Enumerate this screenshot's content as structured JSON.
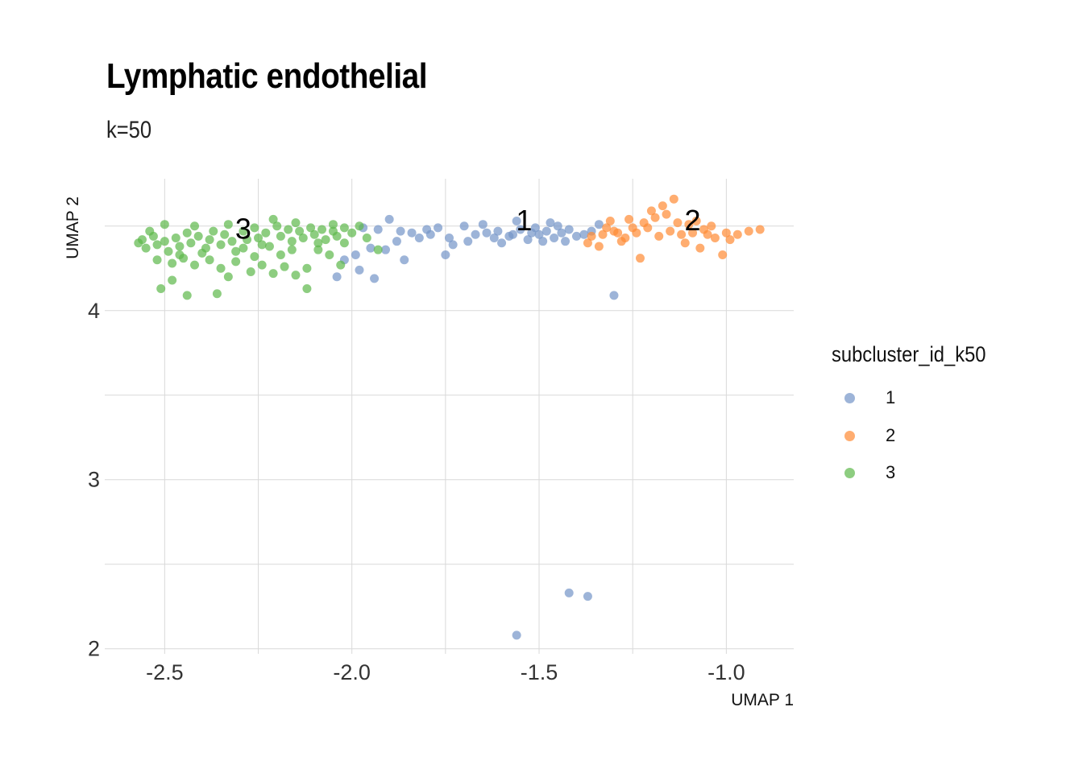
{
  "chart_data": {
    "type": "scatter",
    "title": "Lymphatic endothelial",
    "subtitle": "k=50",
    "xlabel": "UMAP 1",
    "ylabel": "UMAP 2",
    "xlim": [
      -2.66,
      -0.82
    ],
    "ylim": [
      1.97,
      4.78
    ],
    "xticks": [
      -2.5,
      -2.0,
      -1.5,
      -1.0
    ],
    "xtick_labels": [
      "-2.5",
      "-2.0",
      "-1.5",
      "-1.0"
    ],
    "yticks": [
      2,
      3,
      4
    ],
    "ytick_labels": [
      "2",
      "3",
      "4"
    ],
    "grid": true,
    "legend": {
      "title": "subcluster_id_k50",
      "placement": "right",
      "entries": [
        "1",
        "2",
        "3"
      ]
    },
    "series": [
      {
        "name": "1",
        "color": "#7494C8",
        "points": [
          [
            -1.97,
            4.49
          ],
          [
            -1.93,
            4.48
          ],
          [
            -1.9,
            4.54
          ],
          [
            -1.87,
            4.47
          ],
          [
            -1.84,
            4.46
          ],
          [
            -1.8,
            4.48
          ],
          [
            -1.77,
            4.49
          ],
          [
            -1.74,
            4.43
          ],
          [
            -1.7,
            4.5
          ],
          [
            -1.67,
            4.45
          ],
          [
            -1.64,
            4.46
          ],
          [
            -1.61,
            4.47
          ],
          [
            -1.58,
            4.44
          ],
          [
            -1.55,
            4.48
          ],
          [
            -1.52,
            4.46
          ],
          [
            -1.5,
            4.45
          ],
          [
            -1.48,
            4.47
          ],
          [
            -1.46,
            4.43
          ],
          [
            -1.44,
            4.46
          ],
          [
            -1.42,
            4.48
          ],
          [
            -1.4,
            4.44
          ],
          [
            -1.38,
            4.45
          ],
          [
            -1.36,
            4.47
          ],
          [
            -1.34,
            4.51
          ],
          [
            -1.56,
            4.53
          ],
          [
            -1.6,
            4.4
          ],
          [
            -1.53,
            4.42
          ],
          [
            -1.47,
            4.52
          ],
          [
            -1.43,
            4.41
          ],
          [
            -1.65,
            4.51
          ],
          [
            -1.73,
            4.39
          ],
          [
            -1.82,
            4.43
          ],
          [
            -1.88,
            4.41
          ],
          [
            -1.95,
            4.37
          ],
          [
            -1.99,
            4.33
          ],
          [
            -2.02,
            4.3
          ],
          [
            -1.91,
            4.36
          ],
          [
            -1.86,
            4.3
          ],
          [
            -1.75,
            4.33
          ],
          [
            -1.98,
            4.24
          ],
          [
            -2.04,
            4.2
          ],
          [
            -1.94,
            4.19
          ],
          [
            -1.3,
            4.09
          ],
          [
            -1.57,
            4.45
          ],
          [
            -1.51,
            4.49
          ],
          [
            -1.45,
            4.5
          ],
          [
            -1.49,
            4.41
          ],
          [
            -1.62,
            4.43
          ],
          [
            -1.69,
            4.41
          ],
          [
            -1.79,
            4.45
          ],
          [
            -1.42,
            2.33
          ],
          [
            -1.37,
            2.31
          ],
          [
            -1.56,
            2.08
          ]
        ]
      },
      {
        "name": "2",
        "color": "#FF8A33",
        "points": [
          [
            -1.36,
            4.44
          ],
          [
            -1.33,
            4.45
          ],
          [
            -1.3,
            4.47
          ],
          [
            -1.27,
            4.43
          ],
          [
            -1.24,
            4.46
          ],
          [
            -1.21,
            4.49
          ],
          [
            -1.18,
            4.44
          ],
          [
            -1.15,
            4.47
          ],
          [
            -1.12,
            4.45
          ],
          [
            -1.09,
            4.46
          ],
          [
            -1.06,
            4.48
          ],
          [
            -1.03,
            4.43
          ],
          [
            -1.0,
            4.46
          ],
          [
            -0.97,
            4.45
          ],
          [
            -0.94,
            4.47
          ],
          [
            -0.91,
            4.48
          ],
          [
            -1.19,
            4.55
          ],
          [
            -1.16,
            4.57
          ],
          [
            -1.13,
            4.52
          ],
          [
            -1.22,
            4.52
          ],
          [
            -1.26,
            4.54
          ],
          [
            -1.31,
            4.53
          ],
          [
            -1.17,
            4.62
          ],
          [
            -1.2,
            4.59
          ],
          [
            -1.14,
            4.66
          ],
          [
            -1.08,
            4.53
          ],
          [
            -1.04,
            4.5
          ],
          [
            -1.34,
            4.38
          ],
          [
            -1.28,
            4.41
          ],
          [
            -1.11,
            4.4
          ],
          [
            -1.23,
            4.31
          ],
          [
            -1.01,
            4.33
          ],
          [
            -1.07,
            4.37
          ],
          [
            -1.37,
            4.4
          ],
          [
            -1.25,
            4.49
          ],
          [
            -1.1,
            4.51
          ],
          [
            -0.99,
            4.42
          ],
          [
            -1.05,
            4.45
          ],
          [
            -1.29,
            4.46
          ],
          [
            -1.32,
            4.49
          ]
        ]
      },
      {
        "name": "3",
        "color": "#5CB84A",
        "points": [
          [
            -2.56,
            4.42
          ],
          [
            -2.55,
            4.37
          ],
          [
            -2.53,
            4.44
          ],
          [
            -2.52,
            4.39
          ],
          [
            -2.5,
            4.41
          ],
          [
            -2.49,
            4.35
          ],
          [
            -2.47,
            4.43
          ],
          [
            -2.46,
            4.38
          ],
          [
            -2.44,
            4.46
          ],
          [
            -2.43,
            4.4
          ],
          [
            -2.41,
            4.44
          ],
          [
            -2.4,
            4.34
          ],
          [
            -2.38,
            4.42
          ],
          [
            -2.37,
            4.47
          ],
          [
            -2.35,
            4.39
          ],
          [
            -2.34,
            4.45
          ],
          [
            -2.32,
            4.41
          ],
          [
            -2.31,
            4.35
          ],
          [
            -2.29,
            4.47
          ],
          [
            -2.28,
            4.42
          ],
          [
            -2.26,
            4.49
          ],
          [
            -2.25,
            4.43
          ],
          [
            -2.23,
            4.46
          ],
          [
            -2.22,
            4.38
          ],
          [
            -2.2,
            4.5
          ],
          [
            -2.19,
            4.44
          ],
          [
            -2.17,
            4.48
          ],
          [
            -2.16,
            4.41
          ],
          [
            -2.14,
            4.47
          ],
          [
            -2.13,
            4.43
          ],
          [
            -2.11,
            4.49
          ],
          [
            -2.1,
            4.45
          ],
          [
            -2.08,
            4.48
          ],
          [
            -2.07,
            4.42
          ],
          [
            -2.05,
            4.47
          ],
          [
            -2.04,
            4.44
          ],
          [
            -2.02,
            4.49
          ],
          [
            -2.0,
            4.46
          ],
          [
            -2.52,
            4.3
          ],
          [
            -2.48,
            4.28
          ],
          [
            -2.45,
            4.31
          ],
          [
            -2.42,
            4.27
          ],
          [
            -2.38,
            4.3
          ],
          [
            -2.35,
            4.25
          ],
          [
            -2.31,
            4.29
          ],
          [
            -2.27,
            4.23
          ],
          [
            -2.24,
            4.27
          ],
          [
            -2.21,
            4.22
          ],
          [
            -2.18,
            4.26
          ],
          [
            -2.15,
            4.21
          ],
          [
            -2.12,
            4.25
          ],
          [
            -2.51,
            4.13
          ],
          [
            -2.44,
            4.09
          ],
          [
            -2.36,
            4.1
          ],
          [
            -2.12,
            4.13
          ],
          [
            -2.48,
            4.18
          ],
          [
            -2.33,
            4.2
          ],
          [
            -2.26,
            4.32
          ],
          [
            -2.19,
            4.33
          ],
          [
            -2.09,
            4.36
          ],
          [
            -2.06,
            4.33
          ],
          [
            -2.03,
            4.27
          ],
          [
            -2.54,
            4.47
          ],
          [
            -2.5,
            4.51
          ],
          [
            -2.42,
            4.5
          ],
          [
            -2.33,
            4.51
          ],
          [
            -2.21,
            4.54
          ],
          [
            -2.15,
            4.52
          ],
          [
            -2.05,
            4.51
          ],
          [
            -1.98,
            4.5
          ],
          [
            -1.96,
            4.43
          ],
          [
            -2.09,
            4.4
          ],
          [
            -2.39,
            4.37
          ],
          [
            -2.57,
            4.4
          ],
          [
            -2.24,
            4.39
          ],
          [
            -2.16,
            4.36
          ],
          [
            -2.02,
            4.4
          ],
          [
            -1.93,
            4.36
          ],
          [
            -2.29,
            4.37
          ],
          [
            -2.46,
            4.33
          ]
        ]
      }
    ],
    "cluster_labels": [
      {
        "text": "1",
        "x": -1.54,
        "y": 4.52
      },
      {
        "text": "2",
        "x": -1.09,
        "y": 4.52
      },
      {
        "text": "3",
        "x": -2.29,
        "y": 4.47
      }
    ]
  }
}
